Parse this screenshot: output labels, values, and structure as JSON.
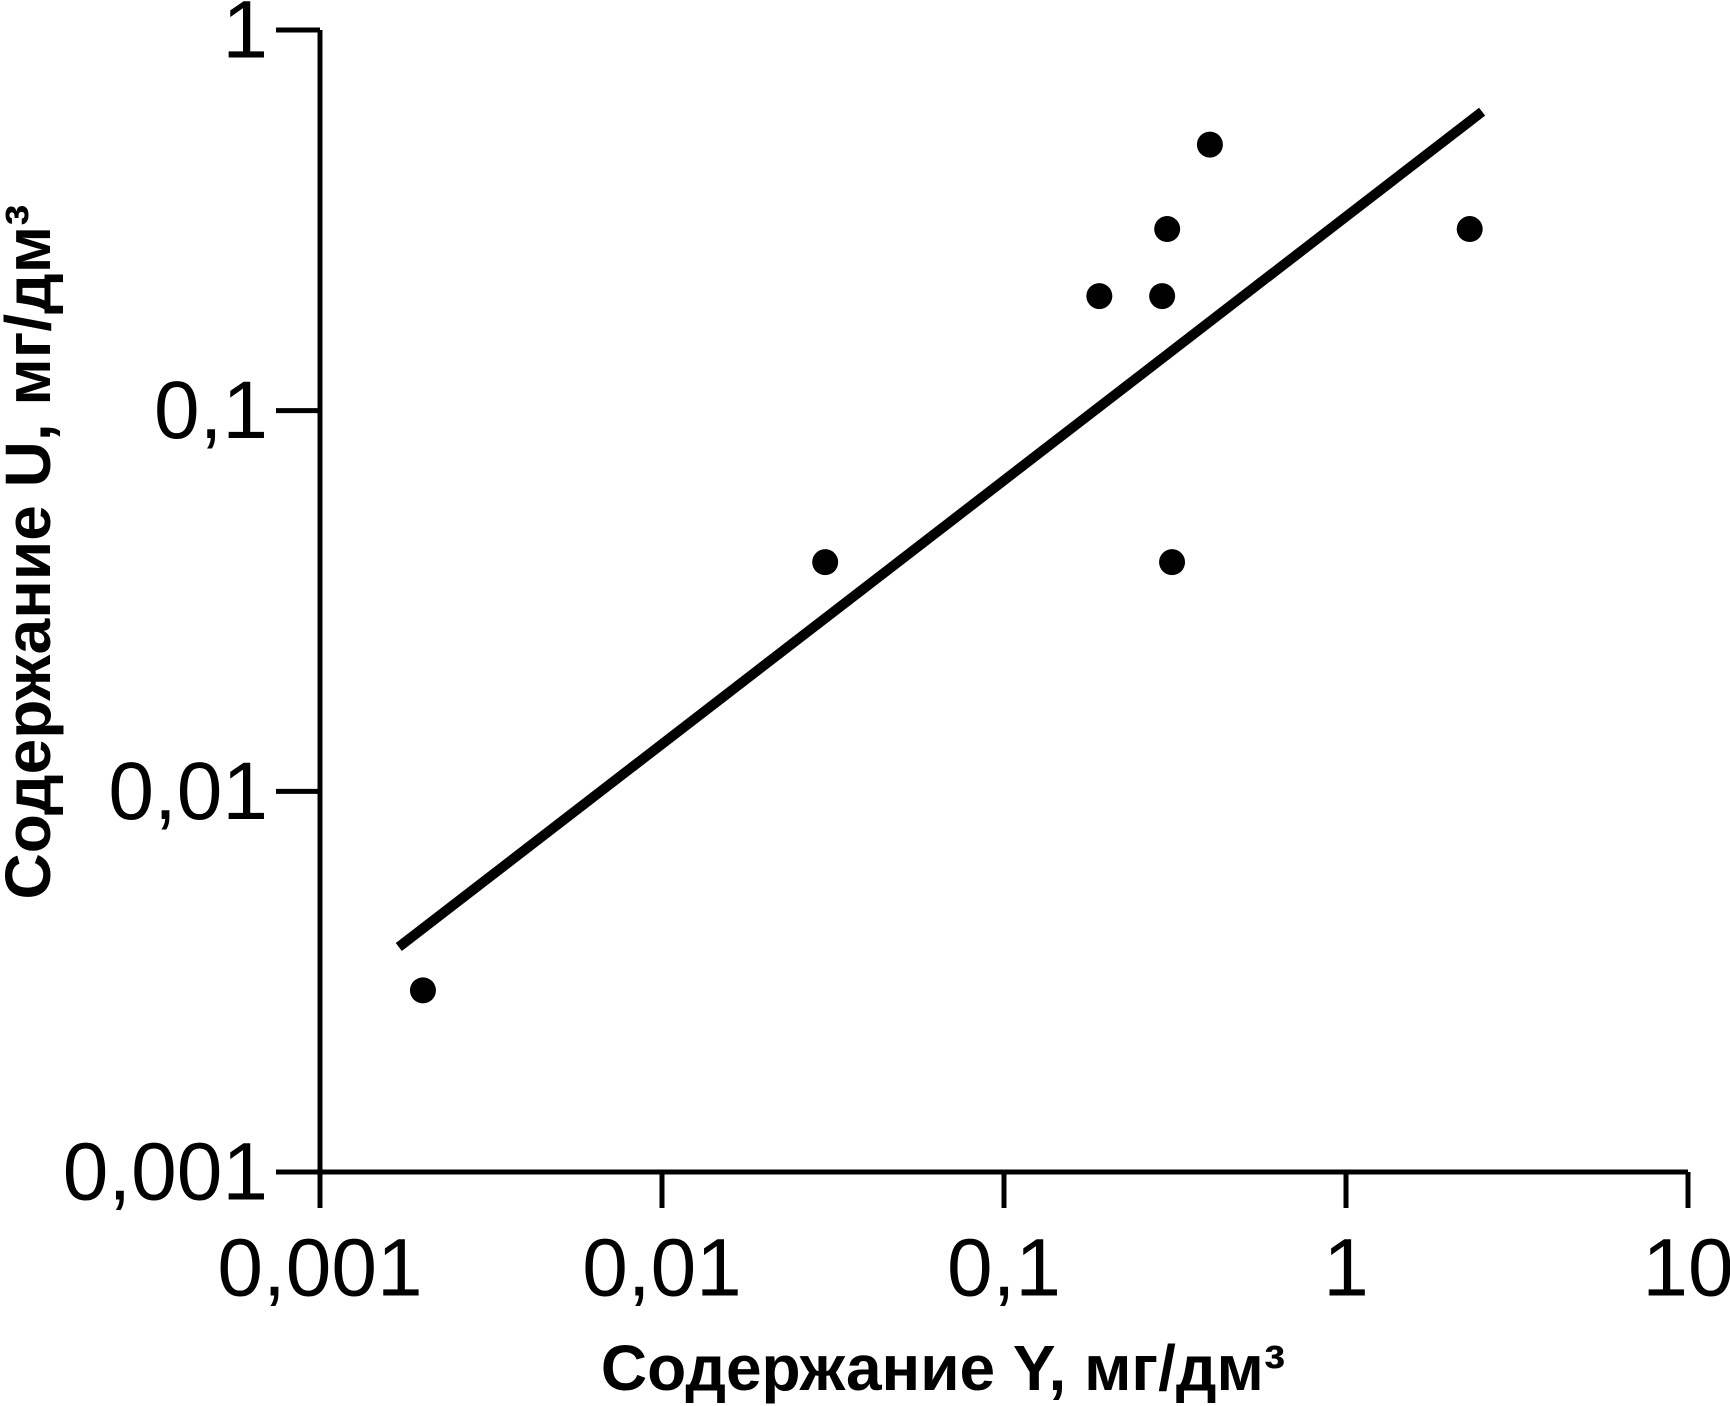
{
  "chart_data": {
    "type": "scatter",
    "xlabel": "Содержание Y, мг/дм³",
    "ylabel": "Содержание U, мг/дм³",
    "x": [
      0.002,
      0.03,
      0.19,
      0.29,
      0.3,
      0.31,
      0.4,
      2.3
    ],
    "values": [
      0.003,
      0.04,
      0.2,
      0.2,
      0.3,
      0.04,
      0.5,
      0.3
    ],
    "color": "#000000",
    "trendline": {
      "x": [
        0.0017,
        2.5
      ],
      "values": [
        0.0039,
        0.61
      ],
      "color": "#000000"
    },
    "xscale": "log",
    "yscale": "log",
    "xlim": [
      0.001,
      10
    ],
    "ylim": [
      0.001,
      1
    ],
    "xticks": [
      {
        "value": 0.001,
        "label": "0,001"
      },
      {
        "value": 0.01,
        "label": "0,01"
      },
      {
        "value": 0.1,
        "label": "0,1"
      },
      1,
      10
    ],
    "yticks": [
      {
        "value": 0.001,
        "label": "0,001"
      },
      {
        "value": 0.01,
        "label": "0,01"
      },
      {
        "value": 0.1,
        "label": "0,1"
      },
      1
    ],
    "grid": false
  }
}
